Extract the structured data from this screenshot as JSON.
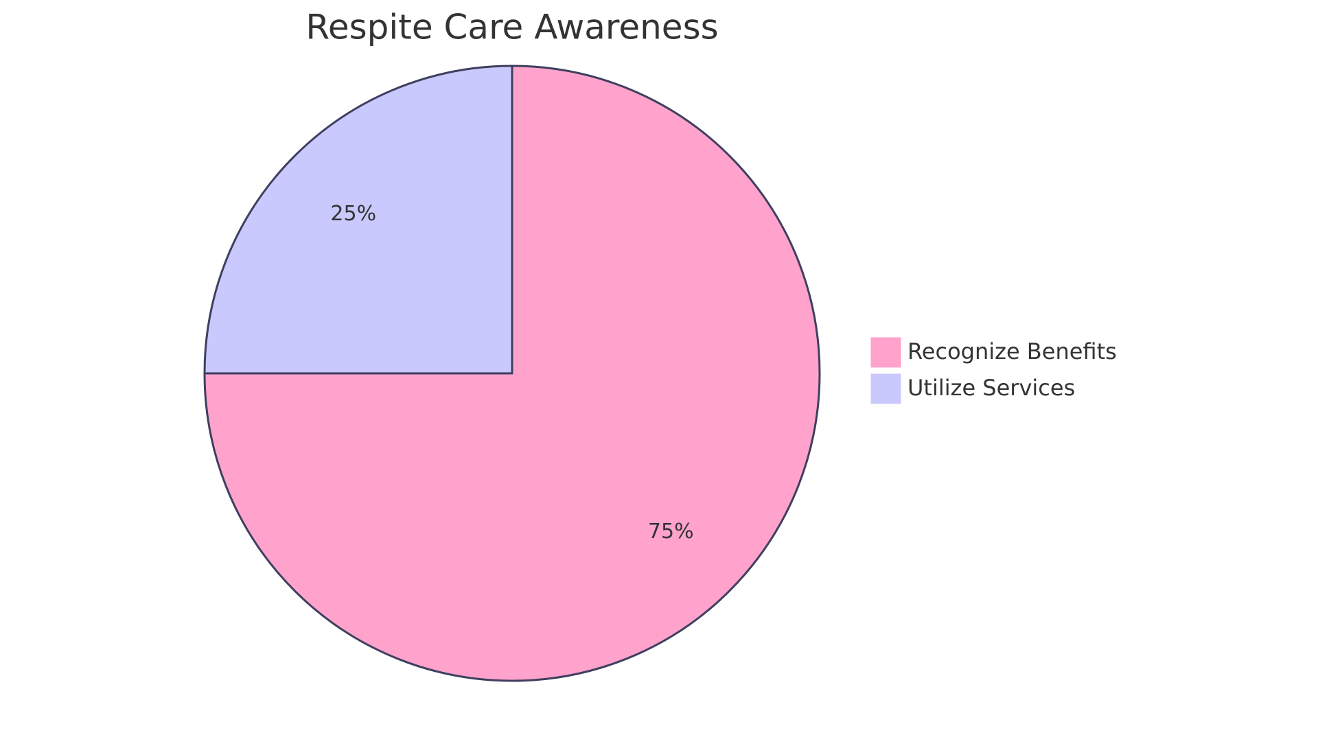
{
  "chart_data": {
    "type": "pie",
    "title": "Respite Care Awareness",
    "categories": [
      "Recognize Benefits",
      "Utilize Services"
    ],
    "values": [
      75,
      25
    ],
    "value_labels": [
      "75%",
      "25%"
    ],
    "colors": [
      "#ffa3cc",
      "#c9c9fe"
    ],
    "legend": "right"
  }
}
